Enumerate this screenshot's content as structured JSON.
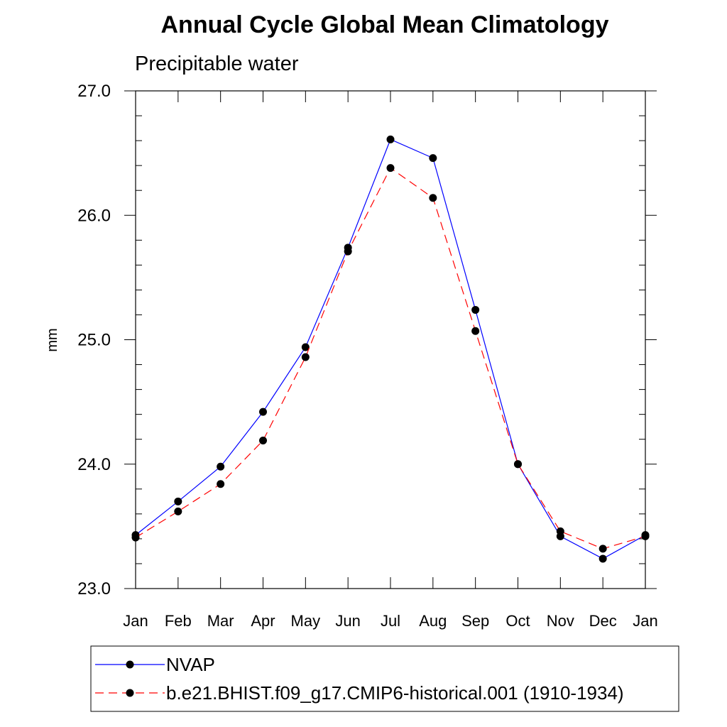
{
  "chart_data": {
    "type": "line",
    "title": "Annual Cycle Global Mean Climatology",
    "subtitle": "Precipitable water",
    "xlabel": "",
    "ylabel": "mm",
    "categories": [
      "Jan",
      "Feb",
      "Mar",
      "Apr",
      "May",
      "Jun",
      "Jul",
      "Aug",
      "Sep",
      "Oct",
      "Nov",
      "Dec",
      "Jan"
    ],
    "ylim": [
      23.0,
      27.0
    ],
    "yticks": [
      "23.0",
      "24.0",
      "25.0",
      "26.0",
      "27.0"
    ],
    "grid": false,
    "legend_position": "bottom",
    "series": [
      {
        "name": "NVAP",
        "color": "#0000ff",
        "line_style": "solid",
        "marker": "filled-circle",
        "values": [
          23.43,
          23.7,
          23.98,
          24.42,
          24.94,
          25.74,
          26.61,
          26.46,
          25.24,
          24.0,
          23.42,
          23.24,
          23.43
        ]
      },
      {
        "name": "b.e21.BHIST.f09_g17.CMIP6-historical.001 (1910-1934)",
        "color": "#ff0000",
        "line_style": "dashed",
        "marker": "filled-circle",
        "values": [
          23.41,
          23.62,
          23.84,
          24.19,
          24.86,
          25.71,
          26.38,
          26.14,
          25.07,
          24.0,
          23.46,
          23.32,
          23.42
        ]
      }
    ]
  }
}
